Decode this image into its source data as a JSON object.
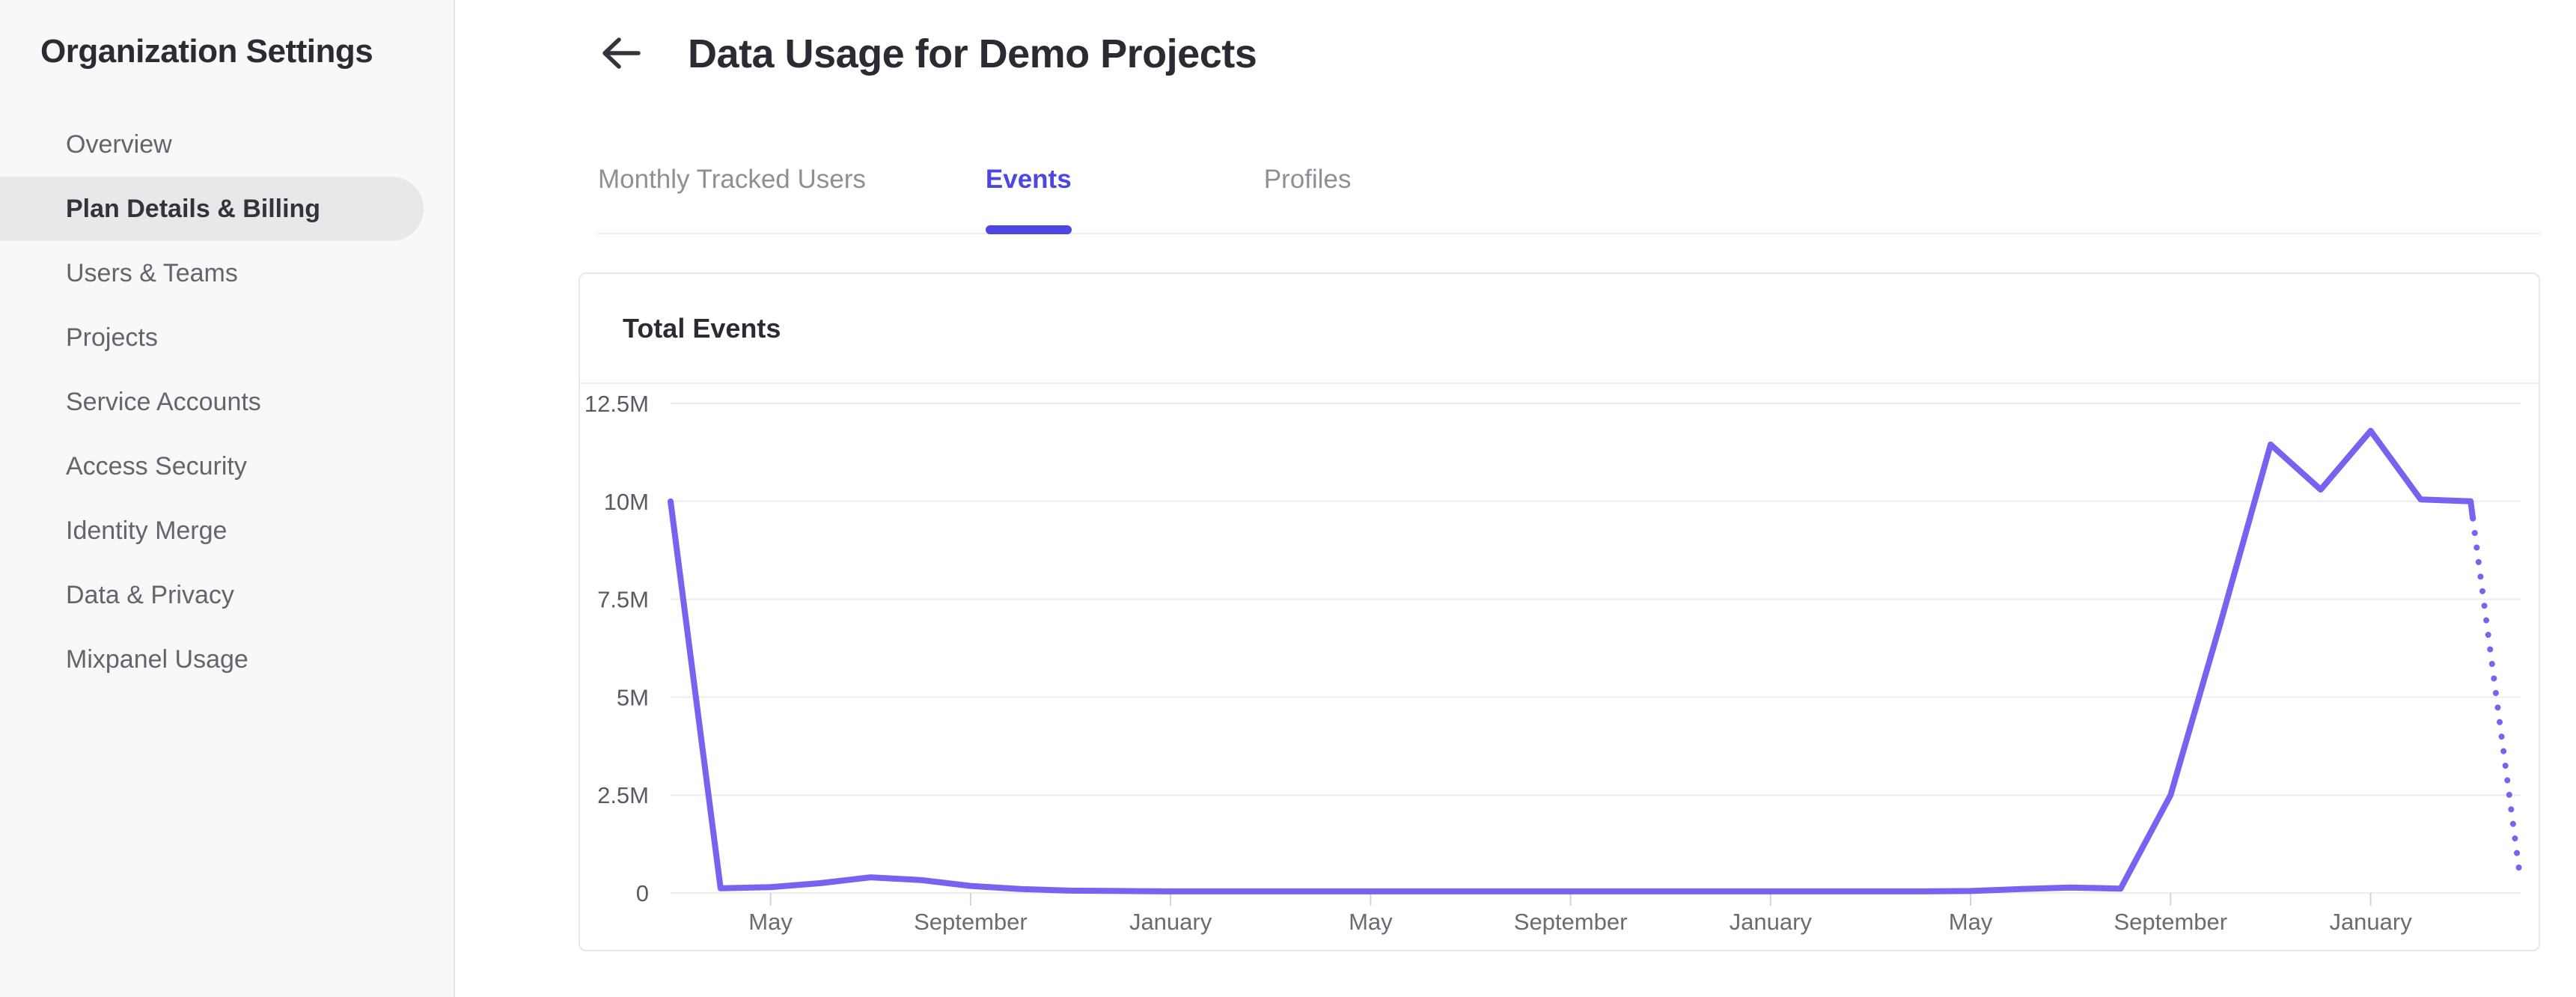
{
  "sidebar": {
    "title": "Organization Settings",
    "items": [
      {
        "label": "Overview",
        "active": false
      },
      {
        "label": "Plan Details & Billing",
        "active": true
      },
      {
        "label": "Users & Teams",
        "active": false
      },
      {
        "label": "Projects",
        "active": false
      },
      {
        "label": "Service Accounts",
        "active": false
      },
      {
        "label": "Access Security",
        "active": false
      },
      {
        "label": "Identity Merge",
        "active": false
      },
      {
        "label": "Data & Privacy",
        "active": false
      },
      {
        "label": "Mixpanel Usage",
        "active": false
      }
    ]
  },
  "header": {
    "title": "Data Usage for Demo Projects",
    "back_icon": "arrow-left-icon"
  },
  "tabs": {
    "items": [
      {
        "label": "Monthly Tracked Users",
        "active": false
      },
      {
        "label": "Events",
        "active": true
      },
      {
        "label": "Profiles",
        "active": false
      }
    ]
  },
  "card": {
    "title": "Total Events"
  },
  "colors": {
    "accent": "#4E46E3",
    "line": "#7A62F0",
    "grid": "#EDEDEF",
    "tick_mark": "#D4D4D8",
    "y_label": "#5A5A64",
    "x_label": "#6B6B74",
    "sidebar_bg": "#F8F8F9",
    "pill_bg": "#E8E8EA",
    "border": "#E7E7EA",
    "text_dark": "#2B2B33",
    "text_gray": "#64646E"
  },
  "chart_data": {
    "type": "line",
    "title": "Total Events",
    "unit": "events per month (millions)",
    "series_name": "Total Events",
    "x_tick_labels": [
      "May",
      "September",
      "January",
      "May",
      "September",
      "January",
      "May",
      "September",
      "January"
    ],
    "x_tick_indices": [
      2,
      6,
      10,
      14,
      18,
      22,
      26,
      30,
      34
    ],
    "y_tick_labels": [
      "0",
      "2.5M",
      "5M",
      "7.5M",
      "10M",
      "12.5M"
    ],
    "ylim": [
      0,
      12.5
    ],
    "grid": "horizontal",
    "legend": "none",
    "n_points": 38,
    "values_millions": [
      10,
      0.12,
      0.15,
      0.25,
      0.4,
      0.33,
      0.18,
      0.1,
      0.06,
      0.05,
      0.04,
      0.04,
      0.04,
      0.04,
      0.04,
      0.04,
      0.04,
      0.04,
      0.04,
      0.04,
      0.04,
      0.04,
      0.04,
      0.04,
      0.04,
      0.04,
      0.05,
      0.1,
      0.14,
      0.11,
      2.5,
      6.9,
      11.45,
      10.3,
      11.8,
      10.05,
      10.0,
      0.3
    ],
    "dotted_from_index": 36,
    "last_segment_style": "dotted"
  }
}
